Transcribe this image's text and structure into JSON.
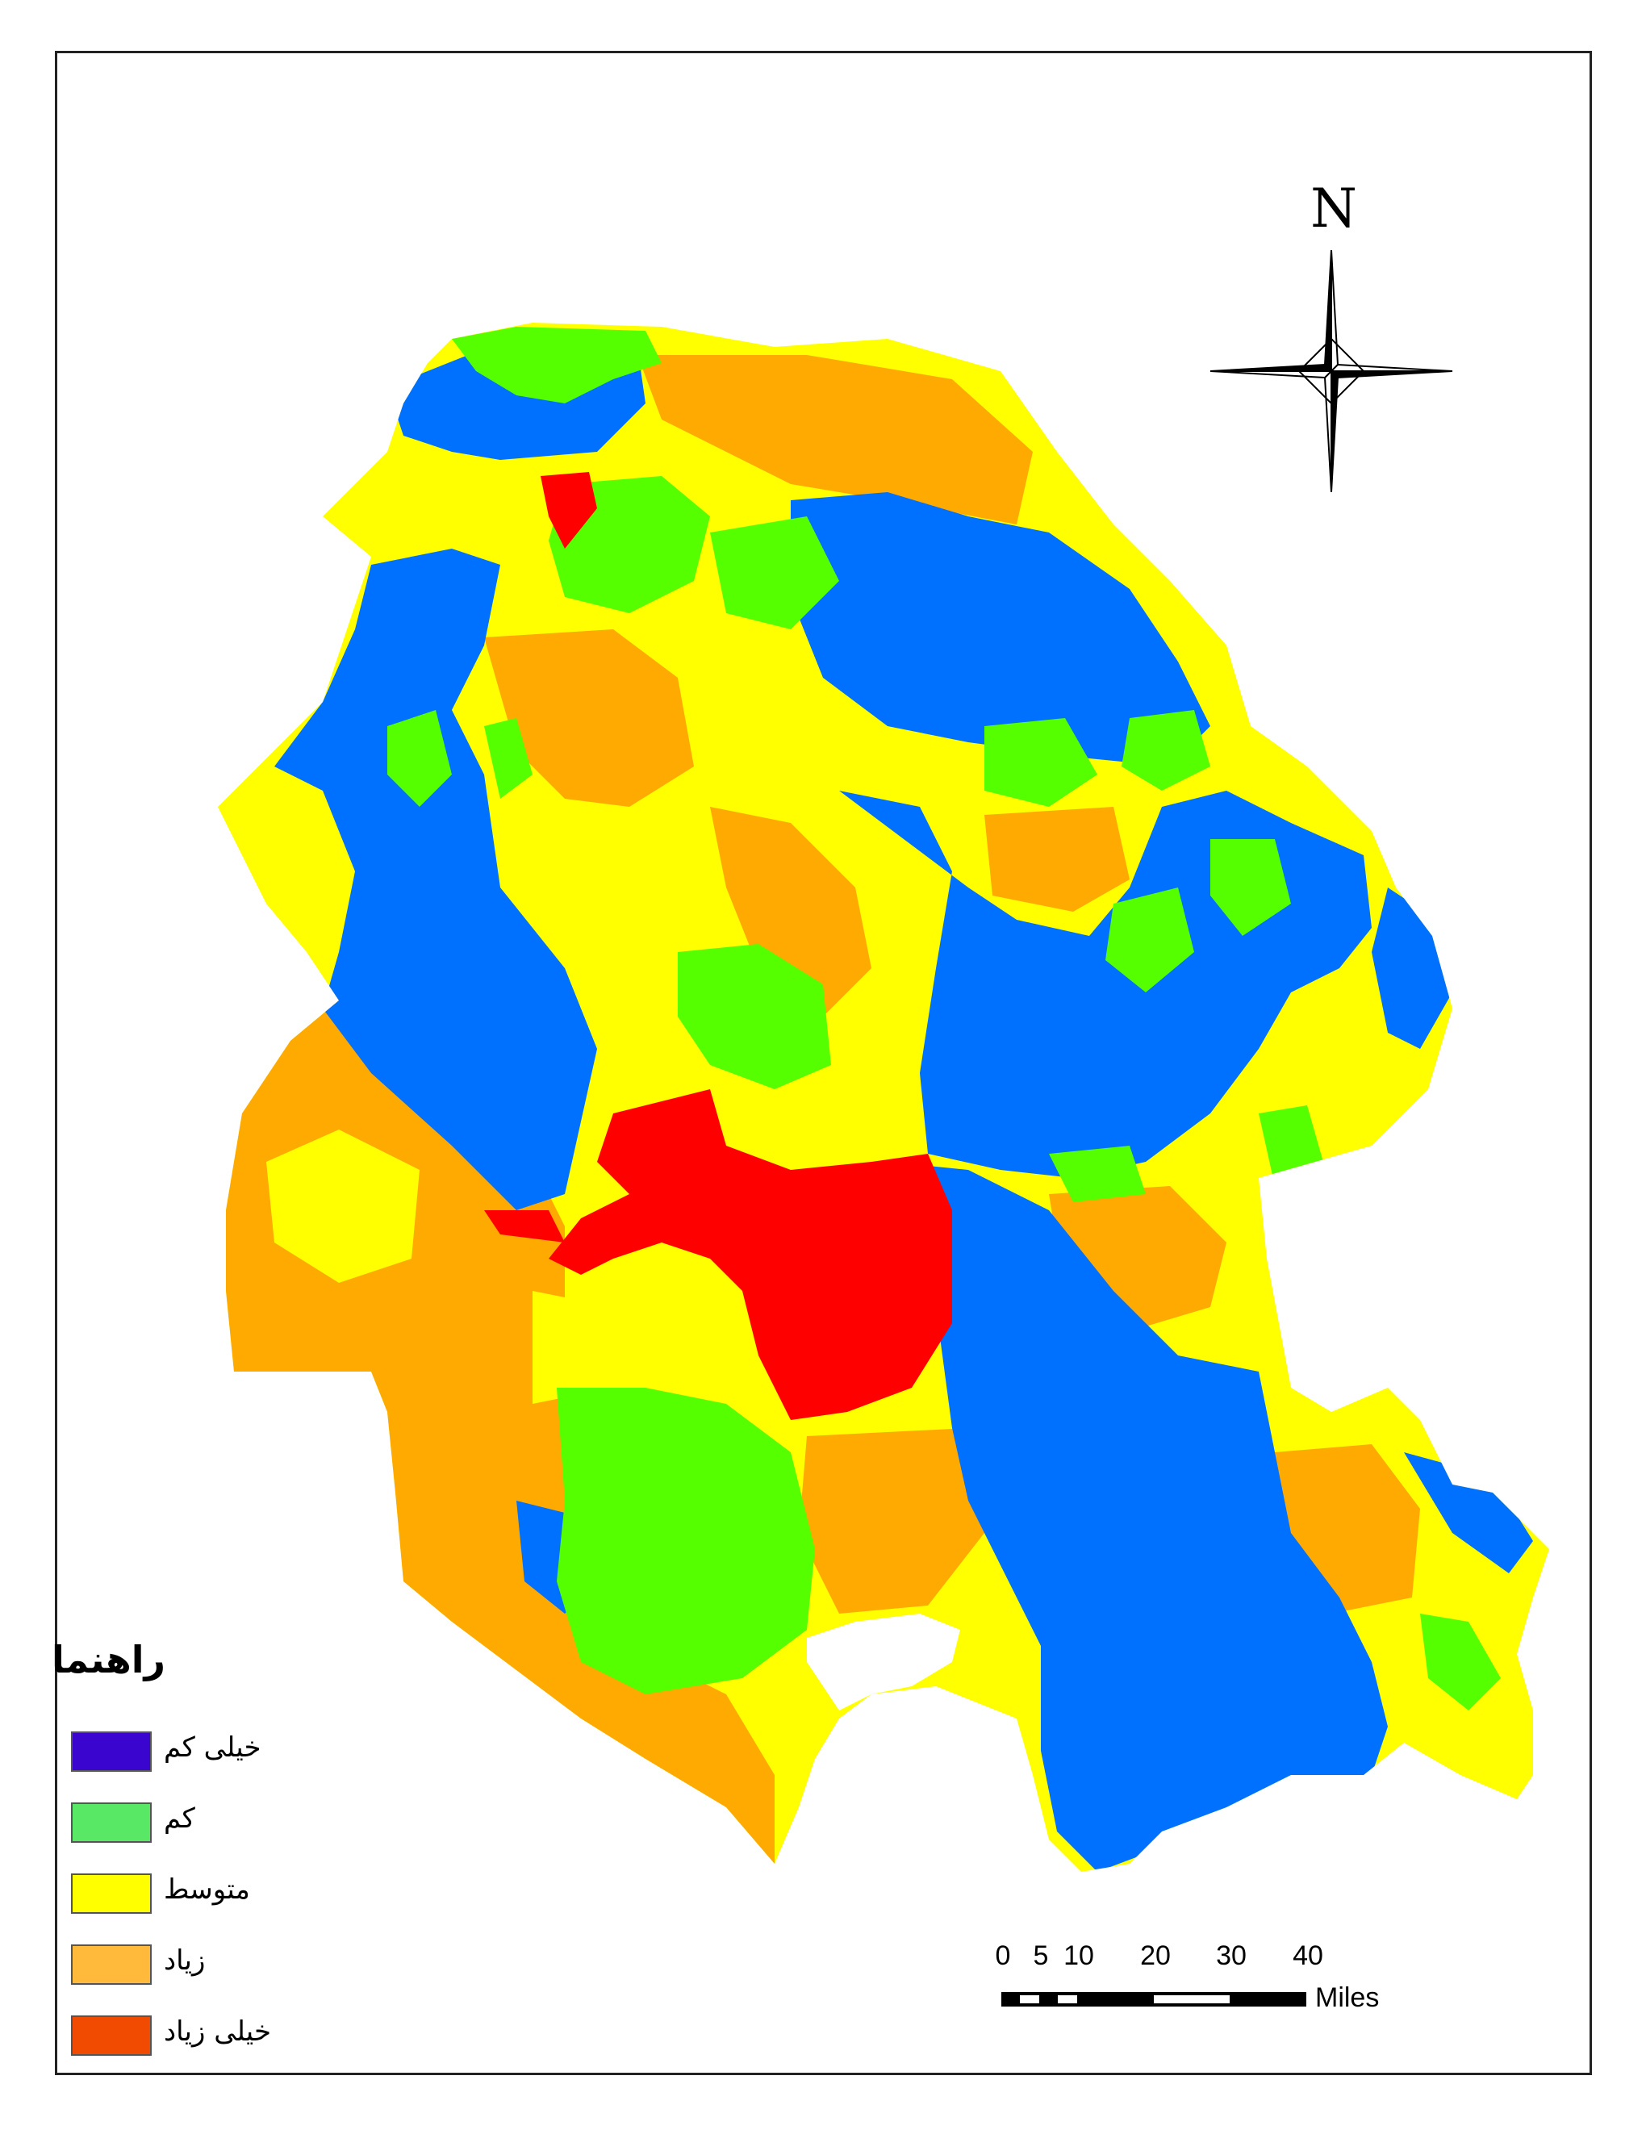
{
  "map": {
    "north_label": "N",
    "legend": {
      "title": "راهنما",
      "items": [
        {
          "label": "خیلی کم",
          "color": "#3a06cf"
        },
        {
          "label": "کم",
          "color": "#59e866"
        },
        {
          "label": "متوسط",
          "color": "#ffff00"
        },
        {
          "label": "زیاد",
          "color": "#ffb93b"
        },
        {
          "label": "خیلی زیاد",
          "color": "#f04b00"
        }
      ]
    },
    "scale": {
      "ticks": [
        "0",
        "5",
        "10",
        "20",
        "30",
        "40"
      ],
      "unit": "Miles"
    },
    "class_colors": {
      "blue": "#0070ff",
      "green": "#55ff00",
      "yellow": "#ffff00",
      "orange": "#ffaa00",
      "red": "#ff0000"
    }
  }
}
